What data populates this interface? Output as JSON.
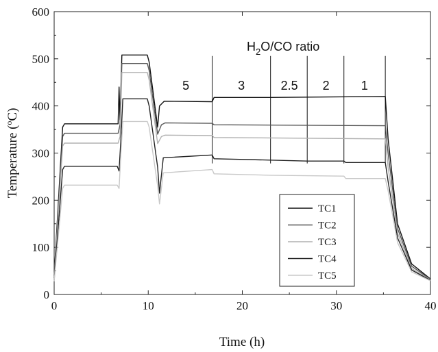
{
  "chart_data": {
    "type": "line",
    "xlabel": "Time (h)",
    "ylabel_main": "Temperature (",
    "ylabel_sup": "o",
    "ylabel_end": "C)",
    "xlim": [
      0,
      40
    ],
    "ylim": [
      0,
      600
    ],
    "xticks": [
      0,
      10,
      20,
      30,
      40
    ],
    "yticks": [
      0,
      100,
      200,
      300,
      400,
      500,
      600
    ],
    "grid": false,
    "legend_position": "bottom-right",
    "ratio_title": {
      "pre": "H",
      "sub": "2",
      "post": "O/CO ratio"
    },
    "ratio_boundaries": [
      16.8,
      23.0,
      26.9,
      30.8,
      35.2
    ],
    "ratio_labels": [
      {
        "text": "5",
        "x": 14.0
      },
      {
        "text": "3",
        "x": 19.9
      },
      {
        "text": "2.5",
        "x": 25.0
      },
      {
        "text": "2",
        "x": 28.9
      },
      {
        "text": "1",
        "x": 33.0
      }
    ],
    "series": [
      {
        "name": "TC1",
        "color": "#111111",
        "x": [
          0,
          0.9,
          1.1,
          6.8,
          6.9,
          7.0,
          7.2,
          9.9,
          10.1,
          11.0,
          11.2,
          11.7,
          16.8,
          17.0,
          23.0,
          35.2,
          35.5,
          36.5,
          38.0,
          40.0
        ],
        "y": [
          40,
          355,
          362,
          362,
          440,
          370,
          508,
          508,
          493,
          355,
          400,
          410,
          409,
          418,
          418,
          420,
          330,
          150,
          65,
          33
        ]
      },
      {
        "name": "TC2",
        "color": "#555555",
        "x": [
          0,
          0.9,
          1.1,
          6.8,
          7.0,
          7.2,
          9.9,
          10.1,
          11.0,
          11.4,
          11.8,
          16.8,
          17.0,
          35.2,
          35.5,
          36.5,
          38.0,
          40.0
        ],
        "y": [
          35,
          335,
          342,
          342,
          360,
          490,
          490,
          475,
          340,
          360,
          364,
          363,
          360,
          358,
          300,
          140,
          60,
          32
        ]
      },
      {
        "name": "TC3",
        "color": "#b0b0b0",
        "x": [
          0,
          0.9,
          1.1,
          6.8,
          7.0,
          7.2,
          9.9,
          10.1,
          11.0,
          11.4,
          11.8,
          16.8,
          17.0,
          35.2,
          35.5,
          36.5,
          38.0,
          40.0
        ],
        "y": [
          32,
          315,
          321,
          321,
          335,
          471,
          471,
          455,
          320,
          335,
          338,
          337,
          333,
          330,
          270,
          130,
          55,
          31
        ]
      },
      {
        "name": "TC4",
        "color": "#222222",
        "x": [
          0,
          0.9,
          1.1,
          6.7,
          6.9,
          7.1,
          7.3,
          9.9,
          10.1,
          11.0,
          11.2,
          11.6,
          16.8,
          17.0,
          23.0,
          26.9,
          30.8,
          31.0,
          35.2,
          35.5,
          36.5,
          38.0,
          40.0
        ],
        "y": [
          30,
          265,
          272,
          272,
          262,
          330,
          415,
          415,
          400,
          270,
          215,
          290,
          296,
          288,
          285,
          283,
          283,
          280,
          280,
          240,
          120,
          52,
          30
        ]
      },
      {
        "name": "TC5",
        "color": "#c8c8c8",
        "x": [
          0,
          0.9,
          1.1,
          6.7,
          6.9,
          7.1,
          7.3,
          9.9,
          10.1,
          11.0,
          11.2,
          11.6,
          16.8,
          17.0,
          23.0,
          30.8,
          31.0,
          35.2,
          35.5,
          36.5,
          38.0,
          40.0
        ],
        "y": [
          28,
          225,
          232,
          232,
          225,
          300,
          367,
          367,
          355,
          230,
          192,
          258,
          265,
          256,
          253,
          251,
          246,
          246,
          220,
          110,
          48,
          29
        ]
      }
    ]
  }
}
